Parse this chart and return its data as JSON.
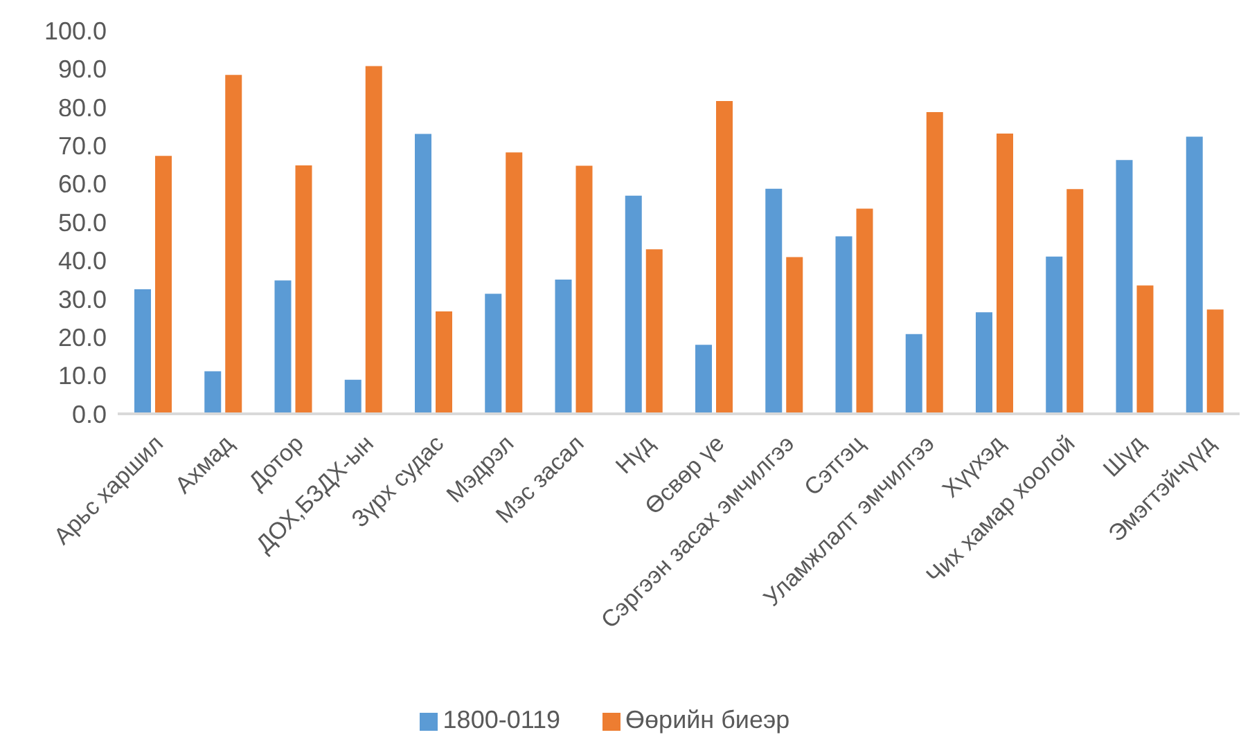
{
  "chart_data": {
    "type": "bar",
    "categories": [
      "Арьс харшил",
      "Ахмад",
      "Дотор",
      "ДОХ,БЗДХ-ын",
      "Зүрх судас",
      "Мэдрэл",
      "Мэс засал",
      "Нүд",
      "Өсвөр үе",
      "Сэргээн засах эмчилгээ",
      "Сэтгэц",
      "Уламжлалт эмчилгээ",
      "Хүүхэд",
      "Чих хамар хоолой",
      "Шүд",
      "Эмэгтэйчүүд"
    ],
    "series": [
      {
        "name": "1800-0119",
        "color": "#5b9bd5",
        "values": [
          32.5,
          11.1,
          34.8,
          8.9,
          73.0,
          31.3,
          35.0,
          56.9,
          18.0,
          58.7,
          46.3,
          20.8,
          26.5,
          41.0,
          66.2,
          72.3
        ]
      },
      {
        "name": "Өөрийн биеэр",
        "color": "#ed7d31",
        "values": [
          67.3,
          88.4,
          64.8,
          90.7,
          26.7,
          68.2,
          64.7,
          42.9,
          81.6,
          40.9,
          53.5,
          78.7,
          73.1,
          58.6,
          33.5,
          27.2
        ]
      }
    ],
    "ylim": [
      0,
      100
    ],
    "yticks": [
      {
        "value": 0,
        "label": "0.0"
      },
      {
        "value": 10,
        "label": "10.0"
      },
      {
        "value": 20,
        "label": "20.0"
      },
      {
        "value": 30,
        "label": "30.0"
      },
      {
        "value": 40,
        "label": "40.0"
      },
      {
        "value": 50,
        "label": "50.0"
      },
      {
        "value": 60,
        "label": "60.0"
      },
      {
        "value": 70,
        "label": "70.0"
      },
      {
        "value": 80,
        "label": "80.0"
      },
      {
        "value": 90,
        "label": "90.0"
      },
      {
        "value": 100,
        "label": "100.0"
      }
    ],
    "grid": false,
    "legend": "bottom"
  }
}
